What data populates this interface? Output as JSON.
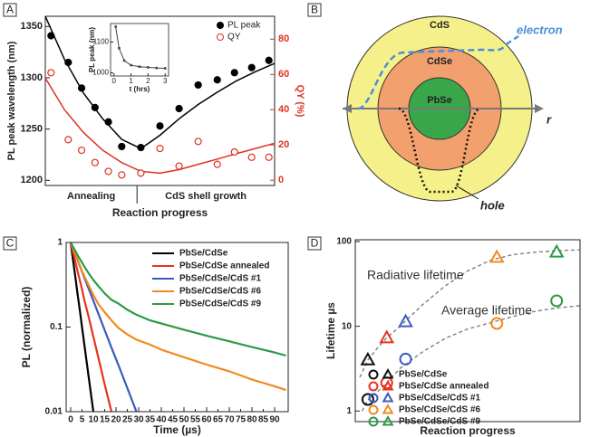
{
  "chart_data": [
    {
      "type": "scatter",
      "panel_label": "A",
      "xlabel": "Reaction progress",
      "ylabel": "PL peak wavelength (nm)",
      "y2label": "QY (%)",
      "xlim": [
        0,
        12
      ],
      "ylim": [
        1195,
        1360
      ],
      "yticks": [
        1200,
        1250,
        1300,
        1350
      ],
      "y2lim": [
        -3,
        93
      ],
      "y2ticks": [
        0,
        20,
        40,
        60,
        80
      ],
      "x_groups": [
        {
          "label": "Annealing",
          "from": 0,
          "to": 4.8
        },
        {
          "label": "CdS shell growth",
          "from": 4.8,
          "to": 12
        }
      ],
      "series": [
        {
          "name": "PL peak",
          "color": "#000000",
          "marker": "filled-circle",
          "x": [
            0.3,
            1.2,
            1.9,
            2.6,
            3.3,
            4.0,
            5.0,
            6.0,
            7.0,
            8.0,
            9.0,
            9.9,
            10.8,
            11.7
          ],
          "values": [
            1341,
            1315,
            1290,
            1271,
            1257,
            1233,
            1232,
            1253,
            1270,
            1293,
            1298,
            1305,
            1310,
            1317
          ]
        },
        {
          "name": "QY",
          "color": "#e03020",
          "marker": "open-circle",
          "axis": "y2",
          "x": [
            0.3,
            1.2,
            1.9,
            2.6,
            3.3,
            4.0,
            5.0,
            6.0,
            7.0,
            8.0,
            9.0,
            9.9,
            10.8,
            11.7
          ],
          "values": [
            61,
            23,
            17,
            10,
            5,
            3,
            4,
            18,
            8,
            22,
            9,
            16,
            13,
            13
          ]
        }
      ],
      "fits": [
        {
          "color": "#000000",
          "x": [
            0,
            1,
            2,
            3,
            4,
            5,
            6,
            7,
            8,
            9,
            10,
            11,
            12
          ],
          "values": [
            1360,
            1318,
            1285,
            1260,
            1240,
            1231,
            1244,
            1260,
            1274,
            1286,
            1297,
            1306,
            1314
          ]
        },
        {
          "color": "#e03020",
          "axis": "y2",
          "x": [
            0,
            1,
            2,
            3,
            4,
            5,
            6,
            7,
            8,
            9,
            10,
            11,
            12
          ],
          "values": [
            58,
            40,
            27,
            17,
            10,
            5,
            4,
            6,
            9,
            12,
            15,
            18,
            21
          ]
        }
      ],
      "inset": {
        "type": "line",
        "xlabel": "t (hrs)",
        "ylabel": "PL peak (nm)",
        "xlim": [
          -0.2,
          3.2
        ],
        "xticks": [
          0,
          1,
          2,
          3
        ],
        "ylim": [
          990,
          1160
        ],
        "yticks": [
          1000,
          1100
        ],
        "color": "#444444",
        "x": [
          0.1,
          0.3,
          0.6,
          1,
          1.5,
          2,
          2.5,
          3
        ],
        "values": [
          1150,
          1080,
          1040,
          1025,
          1020,
          1018,
          1016,
          1015
        ]
      }
    },
    {
      "type": "line",
      "panel_label": "C",
      "xlabel": "Time (µs)",
      "ylabel": "PL (normalized)",
      "log_y": true,
      "xlim": [
        -2,
        96
      ],
      "xticks": [
        0,
        5,
        10,
        15,
        20,
        25,
        30,
        35,
        40,
        45,
        50,
        55,
        60,
        65,
        70,
        75,
        80,
        85,
        90
      ],
      "ylim": [
        0.01,
        1
      ],
      "yticks": [
        1,
        0.1,
        0.01
      ],
      "x": [
        0,
        1,
        2,
        3,
        4,
        5,
        6,
        8,
        10,
        12,
        15,
        18,
        21,
        25,
        29,
        35,
        40,
        50,
        60,
        70,
        80,
        90,
        95
      ],
      "series": [
        {
          "name": "PbSe/CdSe",
          "color": "#000000",
          "values": [
            1,
            0.63,
            0.4,
            0.25,
            0.16,
            0.1,
            0.063,
            0.025,
            0.01,
            null,
            null,
            null,
            null,
            null,
            null,
            null,
            null,
            null,
            null,
            null,
            null,
            null,
            null
          ]
        },
        {
          "name": "PbSe/CdSe annealed",
          "color": "#e8321e",
          "values": [
            1,
            0.77,
            0.6,
            0.46,
            0.36,
            0.28,
            0.21,
            0.13,
            0.077,
            0.046,
            0.021,
            0.01,
            null,
            null,
            null,
            null,
            null,
            null,
            null,
            null,
            null,
            null,
            null
          ]
        },
        {
          "name": "PbSe/CdSe/CdS #1",
          "color": "#3a5bbd",
          "values": [
            1,
            0.853,
            0.728,
            0.621,
            0.53,
            0.452,
            0.386,
            0.281,
            0.205,
            0.149,
            0.092,
            0.057,
            0.036,
            0.019,
            0.01,
            null,
            null,
            null,
            null,
            null,
            null,
            null,
            null
          ]
        },
        {
          "name": "PbSe/CdSe/CdS #6",
          "color": "#f08a1c",
          "values": [
            1,
            0.85,
            0.73,
            0.63,
            0.54,
            0.46,
            0.4,
            0.31,
            0.24,
            0.19,
            0.15,
            0.12,
            0.098,
            0.082,
            0.071,
            0.062,
            0.054,
            0.044,
            0.036,
            0.03,
            0.024,
            0.02,
            0.018
          ]
        },
        {
          "name": "PbSe/CdSe/CdS #9",
          "color": "#2a9a48",
          "values": [
            1,
            0.89,
            0.8,
            0.71,
            0.64,
            0.58,
            0.52,
            0.43,
            0.36,
            0.31,
            0.25,
            0.21,
            0.19,
            0.16,
            0.14,
            0.12,
            0.11,
            0.093,
            0.079,
            0.068,
            0.058,
            0.05,
            0.046
          ]
        }
      ]
    },
    {
      "type": "scatter",
      "panel_label": "D",
      "xlabel": "Reaction progress",
      "ylabel": "Lifetime µs",
      "log_y": true,
      "xlim": [
        0,
        10
      ],
      "ylim": [
        0.75,
        105
      ],
      "yticks": [
        1,
        10,
        100
      ],
      "x": [
        0.56,
        1.4,
        2.24,
        6.3,
        8.96
      ],
      "legend": [
        "PbSe/CdSe",
        "PbSe/CdSe annealed",
        "PbSe/CdSe/CdS #1",
        "PbSe/CdSe/CdS #6",
        "PbSe/CdSe/CdS #9"
      ],
      "colors": [
        "#111111",
        "#e8321e",
        "#3a5bbd",
        "#f08a1c",
        "#2a9a48"
      ],
      "series": [
        {
          "name": "Radiative lifetime",
          "marker": "triangle",
          "values": [
            4.0,
            7.3,
            11.3,
            65,
            75
          ],
          "fit": {
            "x": [
              0.2,
              0.56,
              1,
              1.4,
              2,
              2.5,
              3,
              4,
              5,
              6,
              7,
              8,
              9,
              10
            ],
            "values": [
              2.5,
              4,
              5.6,
              7.3,
              10,
              13.5,
              18,
              30,
              45,
              60,
              70,
              75,
              78,
              80
            ]
          }
        },
        {
          "name": "Average lifetime",
          "marker": "circle",
          "values": [
            1.37,
            2.15,
            4.1,
            10.8,
            20
          ],
          "fit": {
            "x": [
              0.3,
              0.56,
              1,
              1.4,
              2,
              3,
              4,
              5,
              6,
              7,
              8,
              9,
              10
            ],
            "values": [
              1,
              1.35,
              1.7,
              2.15,
              3.2,
              5,
              7.2,
              9.3,
              11,
              13,
              15,
              16.5,
              17.5
            ]
          }
        }
      ]
    }
  ],
  "diagram": {
    "panel_label": "B",
    "labels": {
      "shell": "CdS",
      "inner_shell": "CdSe",
      "core": "PbSe",
      "electron": "electron",
      "hole": "hole",
      "axis": "r"
    }
  }
}
